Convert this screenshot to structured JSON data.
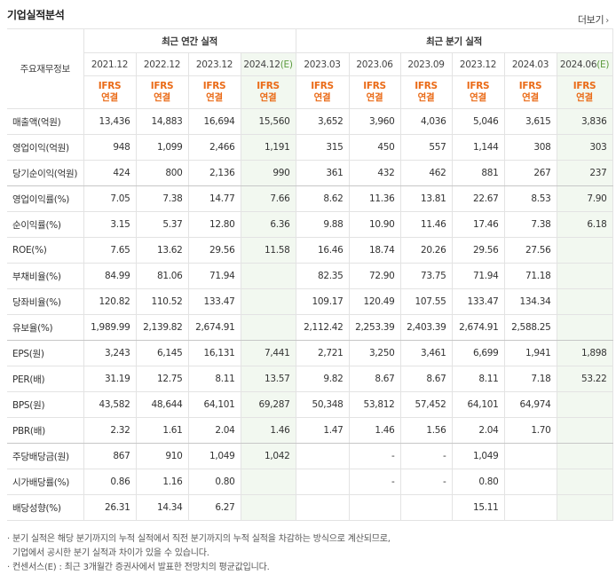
{
  "header": {
    "title": "기업실적분석",
    "more_label": "더보기",
    "more_arrow": "›"
  },
  "table": {
    "corner_label": "주요재무정보",
    "annual_group": "최근 연간 실적",
    "quarter_group": "최근 분기 실적",
    "annual_periods": [
      {
        "period": "2021.12",
        "ifrs": "IFRS",
        "type": "연결",
        "estimate": false
      },
      {
        "period": "2022.12",
        "ifrs": "IFRS",
        "type": "연결",
        "estimate": false
      },
      {
        "period": "2023.12",
        "ifrs": "IFRS",
        "type": "연결",
        "estimate": false
      },
      {
        "period": "2024.12(E)",
        "ifrs": "IFRS",
        "type": "연결",
        "estimate": true
      }
    ],
    "quarter_periods": [
      {
        "period": "2023.03",
        "ifrs": "IFRS",
        "type": "연결",
        "estimate": false
      },
      {
        "period": "2023.06",
        "ifrs": "IFRS",
        "type": "연결",
        "estimate": false
      },
      {
        "period": "2023.09",
        "ifrs": "IFRS",
        "type": "연결",
        "estimate": false
      },
      {
        "period": "2023.12",
        "ifrs": "IFRS",
        "type": "연결",
        "estimate": false
      },
      {
        "period": "2024.03",
        "ifrs": "IFRS",
        "type": "연결",
        "estimate": false
      },
      {
        "period": "2024.06(E)",
        "ifrs": "IFRS",
        "type": "연결",
        "estimate": true
      }
    ],
    "rows": [
      {
        "label": "매출액(억원)",
        "annual": [
          "13,436",
          "14,883",
          "16,694",
          "15,560"
        ],
        "quarter": [
          "3,652",
          "3,960",
          "4,036",
          "5,046",
          "3,615",
          "3,836"
        ]
      },
      {
        "label": "영업이익(억원)",
        "annual": [
          "948",
          "1,099",
          "2,466",
          "1,191"
        ],
        "quarter": [
          "315",
          "450",
          "557",
          "1,144",
          "308",
          "303"
        ]
      },
      {
        "label": "당기순이익(억원)",
        "annual": [
          "424",
          "800",
          "2,136",
          "990"
        ],
        "quarter": [
          "361",
          "432",
          "462",
          "881",
          "267",
          "237"
        ]
      },
      {
        "label": "영업이익률(%)",
        "annual": [
          "7.05",
          "7.38",
          "14.77",
          "7.66"
        ],
        "quarter": [
          "8.62",
          "11.36",
          "13.81",
          "22.67",
          "8.53",
          "7.90"
        ]
      },
      {
        "label": "순이익률(%)",
        "annual": [
          "3.15",
          "5.37",
          "12.80",
          "6.36"
        ],
        "quarter": [
          "9.88",
          "10.90",
          "11.46",
          "17.46",
          "7.38",
          "6.18"
        ]
      },
      {
        "label": "ROE(%)",
        "annual": [
          "7.65",
          "13.62",
          "29.56",
          "11.58"
        ],
        "quarter": [
          "16.46",
          "18.74",
          "20.26",
          "29.56",
          "27.56",
          ""
        ]
      },
      {
        "label": "부채비율(%)",
        "annual": [
          "84.99",
          "81.06",
          "71.94",
          ""
        ],
        "quarter": [
          "82.35",
          "72.90",
          "73.75",
          "71.94",
          "71.18",
          ""
        ]
      },
      {
        "label": "당좌비율(%)",
        "annual": [
          "120.82",
          "110.52",
          "133.47",
          ""
        ],
        "quarter": [
          "109.17",
          "120.49",
          "107.55",
          "133.47",
          "134.34",
          ""
        ]
      },
      {
        "label": "유보율(%)",
        "annual": [
          "1,989.99",
          "2,139.82",
          "2,674.91",
          ""
        ],
        "quarter": [
          "2,112.42",
          "2,253.39",
          "2,403.39",
          "2,674.91",
          "2,588.25",
          ""
        ]
      },
      {
        "label": "EPS(원)",
        "annual": [
          "3,243",
          "6,145",
          "16,131",
          "7,441"
        ],
        "quarter": [
          "2,721",
          "3,250",
          "3,461",
          "6,699",
          "1,941",
          "1,898"
        ]
      },
      {
        "label": "PER(배)",
        "annual": [
          "31.19",
          "12.75",
          "8.11",
          "13.57"
        ],
        "quarter": [
          "9.82",
          "8.67",
          "8.67",
          "8.11",
          "7.18",
          "53.22"
        ]
      },
      {
        "label": "BPS(원)",
        "annual": [
          "43,582",
          "48,644",
          "64,101",
          "69,287"
        ],
        "quarter": [
          "50,348",
          "53,812",
          "57,452",
          "64,101",
          "64,974",
          ""
        ]
      },
      {
        "label": "PBR(배)",
        "annual": [
          "2.32",
          "1.61",
          "2.04",
          "1.46"
        ],
        "quarter": [
          "1.47",
          "1.46",
          "1.56",
          "2.04",
          "1.70",
          ""
        ]
      },
      {
        "label": "주당배당금(원)",
        "annual": [
          "867",
          "910",
          "1,049",
          "1,042"
        ],
        "quarter": [
          "",
          "-",
          "-",
          "1,049",
          "",
          ""
        ]
      },
      {
        "label": "시가배당률(%)",
        "annual": [
          "0.86",
          "1.16",
          "0.80",
          ""
        ],
        "quarter": [
          "",
          "-",
          "-",
          "0.80",
          "",
          ""
        ]
      },
      {
        "label": "배당성향(%)",
        "annual": [
          "26.31",
          "14.34",
          "6.27",
          ""
        ],
        "quarter": [
          "",
          "",
          "",
          "15.11",
          "",
          ""
        ]
      }
    ],
    "group_breaks_after": [
      2,
      8,
      12
    ]
  },
  "notes": [
    "· 분기 실적은 해당 분기까지의 누적 실적에서 직전 분기까지의 누적 실적을 차감하는 방식으로 계산되므로,",
    "  기업에서 공시한 분기 실적과 차이가 있을 수 있습니다.",
    "· 컨센서스(E) : 최근 3개월간 증권사에서 발표한 전망치의 평균값입니다."
  ],
  "colors": {
    "ifrs": "#ea6b18",
    "estimate_bg": "#f2f8f0",
    "estimate_mark": "#5b9a3d"
  }
}
